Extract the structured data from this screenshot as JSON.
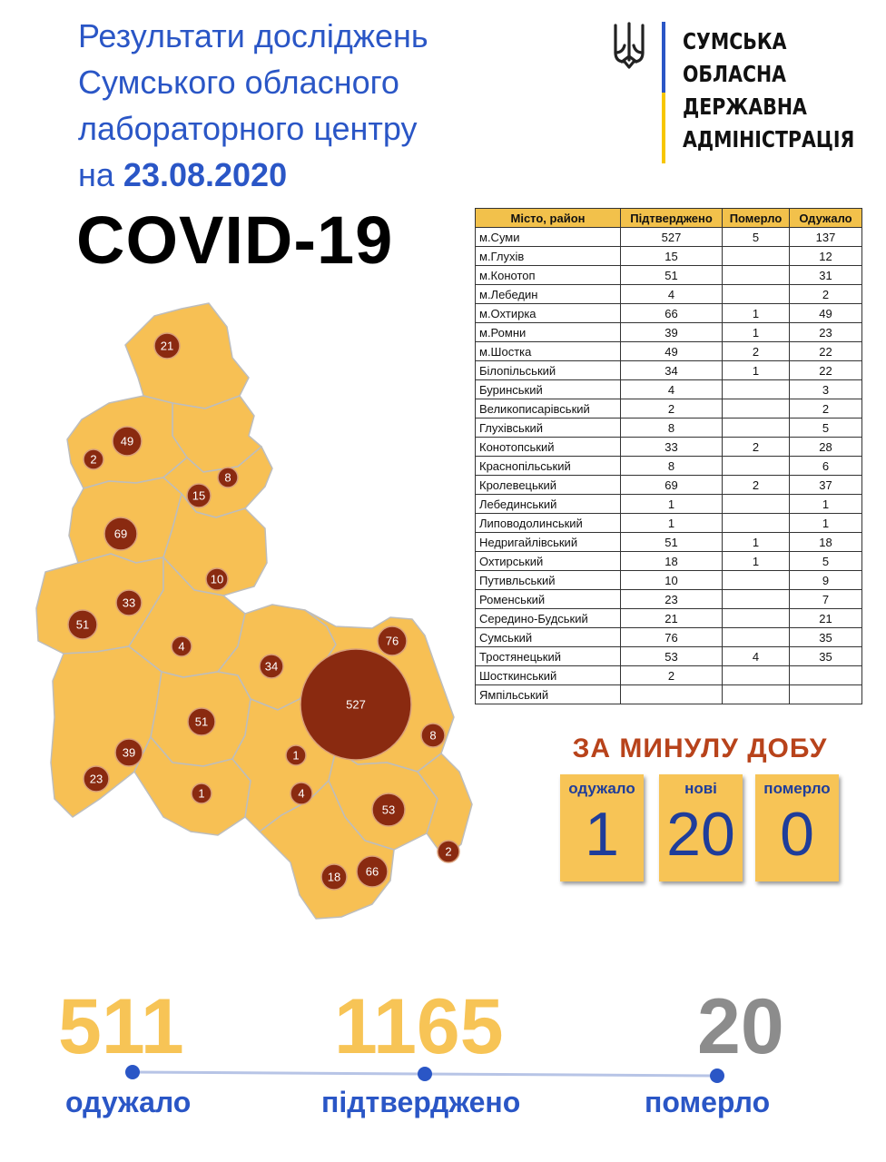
{
  "title": {
    "line1": "Результати досліджень",
    "line2": "Сумського обласного",
    "line3": "лабораторного центру",
    "date_prefix": "на",
    "date": "23.08.2020"
  },
  "headline": "COVID-19",
  "logo": {
    "emblem_icon": "trident-icon",
    "line1": "СУМСЬКА",
    "line2": "ОБЛАСНА",
    "line3": "ДЕРЖАВНА",
    "line4": "АДМІНІСТРАЦІЯ",
    "colors": {
      "blue": "#2a56c6",
      "yellow": "#f7c600"
    }
  },
  "table": {
    "headers": [
      "Місто, район",
      "Підтверджено",
      "Померло",
      "Одужало"
    ],
    "rows": [
      [
        "м.Суми",
        "527",
        "5",
        "137"
      ],
      [
        "м.Глухів",
        "15",
        "",
        "12"
      ],
      [
        "м.Конотоп",
        "51",
        "",
        "31"
      ],
      [
        "м.Лебедин",
        "4",
        "",
        "2"
      ],
      [
        "м.Охтирка",
        "66",
        "1",
        "49"
      ],
      [
        "м.Ромни",
        "39",
        "1",
        "23"
      ],
      [
        "м.Шостка",
        "49",
        "2",
        "22"
      ],
      [
        "Білопільський",
        "34",
        "1",
        "22"
      ],
      [
        "Буринський",
        "4",
        "",
        "3"
      ],
      [
        "Великописарівський",
        "2",
        "",
        "2"
      ],
      [
        "Глухівський",
        "8",
        "",
        "5"
      ],
      [
        "Конотопський",
        "33",
        "2",
        "28"
      ],
      [
        "Краснопільський",
        "8",
        "",
        "6"
      ],
      [
        "Кролевецький",
        "69",
        "2",
        "37"
      ],
      [
        "Лебединський",
        "1",
        "",
        "1"
      ],
      [
        "Липоводолинський",
        "1",
        "",
        "1"
      ],
      [
        "Недригайлівський",
        "51",
        "1",
        "18"
      ],
      [
        "Охтирський",
        "18",
        "1",
        "5"
      ],
      [
        "Путивльський",
        "10",
        "",
        "9"
      ],
      [
        "Роменський",
        "23",
        "",
        "7"
      ],
      [
        "Середино-Будський",
        "21",
        "",
        "21"
      ],
      [
        "Сумський",
        "76",
        "",
        "35"
      ],
      [
        "Тростянецький",
        "53",
        "4",
        "35"
      ],
      [
        "Шосткинський",
        "2",
        "",
        ""
      ],
      [
        "Ямпільський",
        "",
        "",
        ""
      ]
    ]
  },
  "map": {
    "bubbles": [
      "21",
      "49",
      "2",
      "8",
      "15",
      "69",
      "10",
      "33",
      "51",
      "4",
      "34",
      "76",
      "527",
      "8",
      "51",
      "39",
      "23",
      "1",
      "1",
      "4",
      "53",
      "2",
      "18",
      "66"
    ]
  },
  "daily": {
    "title": "ЗА МИНУЛУ ДОБУ",
    "recovered_label": "одужало",
    "recovered": "1",
    "new_label": "нові",
    "new": "20",
    "died_label": "померло",
    "died": "0"
  },
  "totals": {
    "recovered": "511",
    "recovered_label": "одужало",
    "confirmed": "1165",
    "confirmed_label": "підтверджено",
    "died": "20",
    "died_label": "померло",
    "colors": {
      "yellow": "#f7c456",
      "grey": "#8c8c8c",
      "blue": "#2a56c6"
    }
  }
}
